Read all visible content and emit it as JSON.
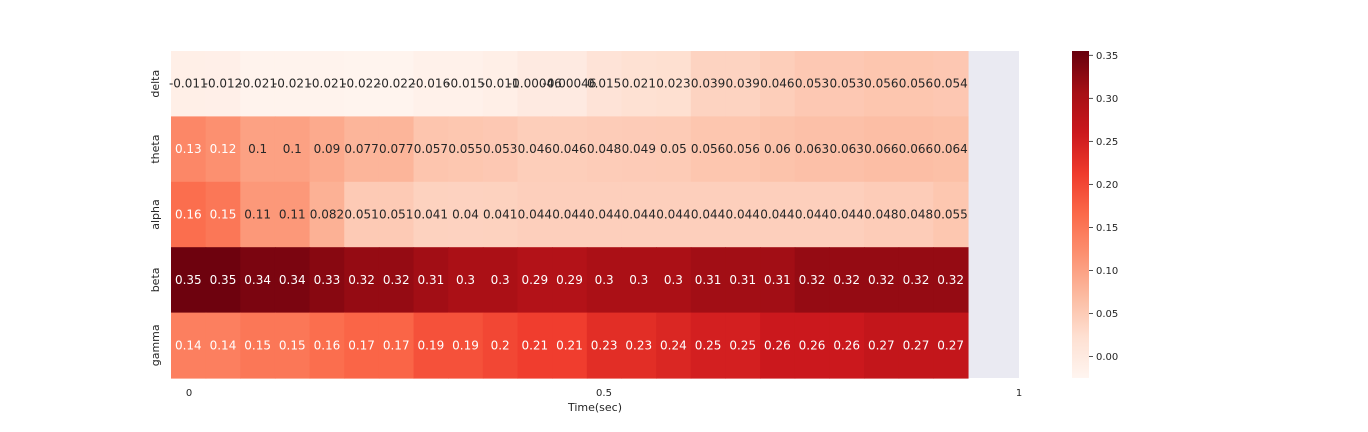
{
  "chart_data": {
    "type": "heatmap",
    "title": "",
    "xlabel": "Time(sec)",
    "ylabel": "",
    "rows": [
      "delta",
      "theta",
      "alpha",
      "beta",
      "gamma"
    ],
    "x_tick_labels": [
      "0",
      "0.5",
      "1"
    ],
    "x_tick_values": [
      0,
      0.5,
      1
    ],
    "xlim": [
      0,
      1
    ],
    "n_columns": 23,
    "values": [
      [
        "-0.011",
        "-0.012",
        "-0.021",
        "-0.021",
        "-0.021",
        "-0.022",
        "-0.022",
        "-0.016",
        "-0.015",
        "-0.011",
        "-0.00046",
        "-0.00046",
        "0.015",
        "0.021",
        "0.023",
        "0.039",
        "0.039",
        "0.046",
        "0.053",
        "0.053",
        "0.056",
        "0.056",
        "0.054"
      ],
      [
        "0.13",
        "0.12",
        "0.1",
        "0.1",
        "0.09",
        "0.077",
        "0.077",
        "0.057",
        "0.055",
        "0.053",
        "0.046",
        "0.046",
        "0.048",
        "0.049",
        "0.05",
        "0.056",
        "0.056",
        "0.06",
        "0.063",
        "0.063",
        "0.066",
        "0.066",
        "0.064"
      ],
      [
        "0.16",
        "0.15",
        "0.11",
        "0.11",
        "0.082",
        "0.051",
        "0.051",
        "0.041",
        "0.04",
        "0.041",
        "0.044",
        "0.044",
        "0.044",
        "0.044",
        "0.044",
        "0.044",
        "0.044",
        "0.044",
        "0.044",
        "0.044",
        "0.048",
        "0.048",
        "0.055"
      ],
      [
        "0.35",
        "0.35",
        "0.34",
        "0.34",
        "0.33",
        "0.32",
        "0.32",
        "0.31",
        "0.3",
        "0.3",
        "0.29",
        "0.29",
        "0.3",
        "0.3",
        "0.3",
        "0.31",
        "0.31",
        "0.31",
        "0.32",
        "0.32",
        "0.32",
        "0.32",
        "0.32"
      ],
      [
        "0.14",
        "0.14",
        "0.15",
        "0.15",
        "0.16",
        "0.17",
        "0.17",
        "0.19",
        "0.19",
        "0.2",
        "0.21",
        "0.21",
        "0.23",
        "0.23",
        "0.24",
        "0.25",
        "0.25",
        "0.26",
        "0.26",
        "0.26",
        "0.27",
        "0.27",
        "0.27"
      ]
    ],
    "colormap": "Reds",
    "colorbar": {
      "range": [
        -0.025,
        0.355
      ],
      "ticks": [
        0.35,
        0.3,
        0.25,
        0.2,
        0.15,
        0.1,
        0.05,
        0.0
      ],
      "tick_labels": [
        "0.35",
        "0.30",
        "0.25",
        "0.20",
        "0.15",
        "0.10",
        "0.05",
        "0.00"
      ]
    },
    "annotations": true,
    "grid": false
  },
  "colors": {
    "axes_background": "#eaeaf2",
    "text_dark": "#262626",
    "text_light": "#ffffff"
  }
}
